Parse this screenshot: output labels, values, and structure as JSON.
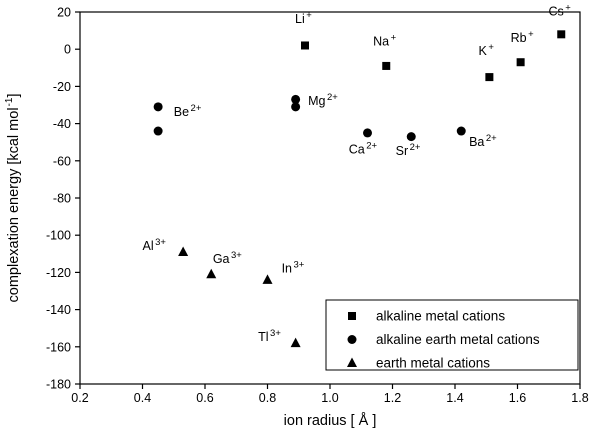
{
  "chart_data": {
    "type": "scatter",
    "title": "",
    "xlabel": "ion radius [ Å ]",
    "ylabel": {
      "main": "complexation energy [kcal mol",
      "sup": "-1",
      "tail": "]"
    },
    "xlim": [
      0.2,
      1.8
    ],
    "ylim": [
      -180,
      20
    ],
    "xticks": [
      "0.2",
      "0.4",
      "0.6",
      "0.8",
      "1.0",
      "1.2",
      "1.4",
      "1.6",
      "1.8"
    ],
    "yticks": [
      "20",
      "0",
      "-20",
      "-40",
      "-60",
      "-80",
      "-100",
      "-120",
      "-140",
      "-160",
      "-180"
    ],
    "grid": false,
    "marker_color": "#000000",
    "background_color": "#ffffff",
    "legend": {
      "position": "bottom-right",
      "entries": [
        {
          "marker": "square",
          "label": "alkaline metal cations"
        },
        {
          "marker": "circle",
          "label": "alkaline earth metal cations"
        },
        {
          "marker": "triangle",
          "label": "earth metal cations"
        }
      ]
    },
    "series": [
      {
        "name": "alkaline metal cations",
        "marker": "square",
        "points": [
          {
            "element": "Li",
            "charge": "+",
            "x": 0.92,
            "y": 2,
            "label_x": 0.915,
            "label_y": 14,
            "anchor": "middle"
          },
          {
            "element": "Na",
            "charge": "+",
            "x": 1.18,
            "y": -9,
            "label_x": 1.175,
            "label_y": 2,
            "anchor": "middle"
          },
          {
            "element": "K",
            "charge": "+",
            "x": 1.51,
            "y": -15,
            "label_x": 1.5,
            "label_y": -3,
            "anchor": "middle"
          },
          {
            "element": "Rb",
            "charge": "+",
            "x": 1.61,
            "y": -7,
            "label_x": 1.615,
            "label_y": 4,
            "anchor": "middle"
          },
          {
            "element": "Cs",
            "charge": "+",
            "x": 1.74,
            "y": 8,
            "label_x": 1.735,
            "label_y": 18,
            "anchor": "middle"
          }
        ]
      },
      {
        "name": "alkaline earth metal cations",
        "marker": "circle",
        "points": [
          {
            "element": "Be",
            "charge": "2+",
            "x": 0.45,
            "y": -31,
            "label_x": 0.5,
            "label_y": -36,
            "anchor": "start"
          },
          {
            "x": 0.45,
            "y": -44
          },
          {
            "element": "Mg",
            "charge": "2+",
            "x": 0.89,
            "y": -27,
            "label_x": 0.93,
            "label_y": -30,
            "anchor": "start"
          },
          {
            "x": 0.89,
            "y": -31
          },
          {
            "element": "Ca",
            "charge": "2+",
            "x": 1.12,
            "y": -45,
            "label_x": 1.06,
            "label_y": -56,
            "anchor": "start"
          },
          {
            "element": "Sr",
            "charge": "2+",
            "x": 1.26,
            "y": -47,
            "label_x": 1.21,
            "label_y": -57,
            "anchor": "start"
          },
          {
            "element": "Ba",
            "charge": "2+",
            "x": 1.42,
            "y": -44,
            "label_x": 1.445,
            "label_y": -52,
            "anchor": "start"
          }
        ]
      },
      {
        "name": "earth metal cations",
        "marker": "triangle",
        "points": [
          {
            "element": "Al",
            "charge": "3+",
            "x": 0.53,
            "y": -109,
            "label_x": 0.4,
            "label_y": -108,
            "anchor": "start"
          },
          {
            "element": "Ga",
            "charge": "3+",
            "x": 0.62,
            "y": -121,
            "label_x": 0.625,
            "label_y": -115,
            "anchor": "start"
          },
          {
            "element": "In",
            "charge": "3+",
            "x": 0.8,
            "y": -124,
            "label_x": 0.845,
            "label_y": -120,
            "anchor": "start"
          },
          {
            "element": "Tl",
            "charge": "3+",
            "x": 0.89,
            "y": -158,
            "label_x": 0.77,
            "label_y": -157,
            "anchor": "start"
          }
        ]
      }
    ]
  }
}
